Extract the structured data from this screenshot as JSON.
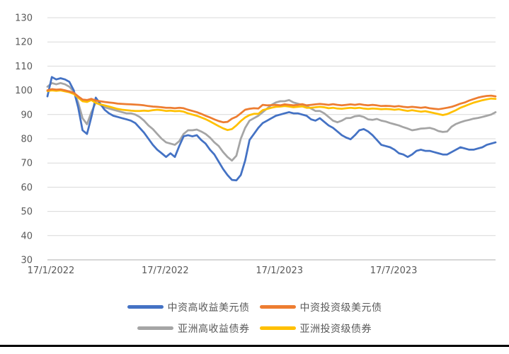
{
  "chart_data": {
    "type": "line",
    "title": "",
    "xlabel": "",
    "ylabel": "",
    "grid": "horizontal",
    "legend_position": "bottom",
    "y_axis": {
      "min": 30,
      "max": 130,
      "step": 10,
      "ticks": [
        130,
        120,
        110,
        100,
        90,
        80,
        70,
        60,
        50,
        40,
        30
      ]
    },
    "x_axis": {
      "num_points": 103,
      "tick_labels": [
        "17/1/2022",
        "17/7/2022",
        "17/1/2023",
        "17/7/2023"
      ],
      "tick_indices": [
        0,
        26,
        52,
        78
      ]
    },
    "series": [
      {
        "name": "中资高收益美元债",
        "color": "#4472C4",
        "values": [
          97.5,
          105.5,
          104.5,
          105,
          104.5,
          103.5,
          100,
          93,
          83.5,
          82,
          89,
          97,
          94.5,
          92,
          90.5,
          89.5,
          89,
          88.5,
          88,
          87.5,
          86.5,
          84.5,
          82.5,
          80,
          77.5,
          75.5,
          74,
          72.5,
          74,
          72.5,
          77,
          81,
          81.5,
          81,
          81.5,
          79.5,
          78,
          75.5,
          73.5,
          70.5,
          67.5,
          65,
          63,
          62.8,
          65,
          71,
          79.5,
          82,
          84.5,
          86.5,
          87.5,
          88.5,
          89.5,
          90,
          90.5,
          91,
          90.5,
          90.5,
          90,
          89.5,
          88,
          87.5,
          88.5,
          87,
          85.5,
          84.5,
          83,
          81.5,
          80.5,
          79.8,
          81.5,
          83.5,
          84,
          83,
          81.5,
          79.5,
          77.5,
          77,
          76.5,
          75.5,
          74,
          73.5,
          72.5,
          73.5,
          75,
          75.5,
          75,
          75,
          74.5,
          74,
          73.5,
          73.5,
          74.5,
          75.5,
          76.5,
          76,
          75.5,
          75.5,
          76,
          76.5,
          77.5,
          78,
          78.5
        ]
      },
      {
        "name": "中资投资级美元债",
        "color": "#ED7D31",
        "values": [
          100,
          100.5,
          100.3,
          100.4,
          100,
          99.5,
          99,
          97.5,
          96.2,
          96,
          96.5,
          95.8,
          95.5,
          95.2,
          95,
          94.8,
          94.5,
          94.4,
          94.3,
          94.2,
          94.1,
          94,
          93.8,
          93.5,
          93.3,
          93.2,
          93,
          92.8,
          92.8,
          92.6,
          92.8,
          92.6,
          92,
          91.5,
          91,
          90.3,
          89.5,
          88.8,
          88,
          87.3,
          86.8,
          87,
          88.3,
          89.1,
          90.5,
          92,
          92.4,
          92.6,
          92.5,
          94,
          93.8,
          93.9,
          94,
          93.8,
          94.2,
          94,
          93.8,
          94,
          94.3,
          93.8,
          94,
          94.2,
          94.4,
          94.2,
          94,
          94.3,
          94,
          93.8,
          94,
          94.2,
          94,
          94.3,
          94,
          93.8,
          94,
          93.8,
          93.5,
          93.6,
          93.5,
          93.3,
          93.5,
          93.2,
          93,
          93.2,
          93,
          92.8,
          93,
          92.6,
          92.4,
          92.2,
          92.5,
          92.8,
          93.2,
          93.8,
          94.5,
          95,
          95.8,
          96.4,
          97,
          97.4,
          97.7,
          97.8,
          97.5
        ]
      },
      {
        "name": "亚洲高收益债券",
        "color": "#A5A5A5",
        "values": [
          101.5,
          103,
          102.5,
          103,
          102.5,
          101.5,
          99.5,
          95,
          88.5,
          86,
          91,
          95,
          94,
          93,
          92.5,
          92,
          91.5,
          91,
          90.5,
          90.5,
          90,
          89,
          87.5,
          85.5,
          84,
          82,
          80,
          78.5,
          78,
          77.5,
          79,
          82,
          83.5,
          83.5,
          83.8,
          83,
          82,
          80.5,
          78.5,
          77,
          74.5,
          72.5,
          71,
          73,
          80,
          84.5,
          87.5,
          88.5,
          89.5,
          91,
          92.5,
          94,
          95,
          95.5,
          95.5,
          96,
          95,
          94.5,
          94,
          93.5,
          92.5,
          91.5,
          91.5,
          90.5,
          89,
          87.5,
          86.8,
          87.5,
          88.5,
          88.6,
          89.3,
          89.5,
          89,
          88,
          87.8,
          88.2,
          87.5,
          87.1,
          86.5,
          86,
          85.5,
          84.8,
          84.2,
          83.5,
          83.8,
          84.2,
          84.3,
          84.5,
          84,
          83.2,
          82.8,
          83,
          85,
          86.1,
          86.8,
          87.4,
          87.8,
          88.3,
          88.6,
          89,
          89.5,
          90,
          91
        ]
      },
      {
        "name": "亚洲投资级债券",
        "color": "#FFC000",
        "values": [
          99.7,
          100,
          99.8,
          100,
          99.6,
          99.2,
          98.5,
          97,
          95.5,
          95.2,
          96,
          94.8,
          94.2,
          93.8,
          93.3,
          92.8,
          92.3,
          92,
          91.8,
          91.6,
          91.5,
          91.5,
          91.6,
          91.5,
          91.8,
          92,
          91.8,
          91.5,
          91.6,
          91.4,
          91.5,
          91.2,
          90.5,
          90,
          89.5,
          88.8,
          88.1,
          87.2,
          86.2,
          85.2,
          84.3,
          83.6,
          84,
          85.5,
          87.3,
          88.8,
          89.8,
          90.3,
          90.3,
          91.8,
          92.3,
          92.8,
          93.2,
          93.3,
          93.5,
          93.3,
          93,
          93.2,
          93.4,
          92.8,
          92.8,
          93,
          93.2,
          93,
          92.6,
          92.8,
          92.5,
          92.4,
          92.6,
          92.8,
          92.6,
          92.8,
          92.5,
          92.3,
          92.5,
          92.4,
          92.2,
          92.3,
          92.2,
          92,
          92.2,
          91.8,
          91.5,
          91.8,
          91.5,
          91.2,
          91.4,
          91,
          90.6,
          90.2,
          89.8,
          90.2,
          91,
          91.8,
          92.8,
          93.5,
          94.2,
          94.9,
          95.4,
          95.9,
          96.3,
          96.6,
          96.5
        ]
      }
    ]
  },
  "styles": {
    "gridline_color": "#D9D9D9",
    "axis_line_color": "#BFBFBF",
    "axis_label_color": "#595959",
    "legend_text_color": "#595959",
    "bottom_rule_color": "#000000"
  }
}
